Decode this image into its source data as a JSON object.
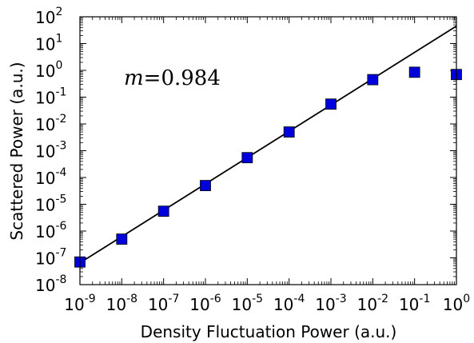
{
  "chart_data": {
    "type": "scatter",
    "title": "",
    "xlabel": "Density Fluctuation Power (a.u.)",
    "ylabel": "Scattered Power (a.u.)",
    "xscale": "log",
    "yscale": "log",
    "xlim": [
      1e-09,
      1
    ],
    "ylim": [
      1e-08,
      100
    ],
    "x_ticks": [
      {
        "base": "10",
        "exp": "-9"
      },
      {
        "base": "10",
        "exp": "-8"
      },
      {
        "base": "10",
        "exp": "-7"
      },
      {
        "base": "10",
        "exp": "-6"
      },
      {
        "base": "10",
        "exp": "-5"
      },
      {
        "base": "10",
        "exp": "-4"
      },
      {
        "base": "10",
        "exp": "-3"
      },
      {
        "base": "10",
        "exp": "-2"
      },
      {
        "base": "10",
        "exp": "-1"
      },
      {
        "base": "10",
        "exp": "0"
      }
    ],
    "y_ticks": [
      {
        "base": "10",
        "exp": "-8"
      },
      {
        "base": "10",
        "exp": "-7"
      },
      {
        "base": "10",
        "exp": "-6"
      },
      {
        "base": "10",
        "exp": "-5"
      },
      {
        "base": "10",
        "exp": "-4"
      },
      {
        "base": "10",
        "exp": "-3"
      },
      {
        "base": "10",
        "exp": "-2"
      },
      {
        "base": "10",
        "exp": "-1"
      },
      {
        "base": "10",
        "exp": "0"
      },
      {
        "base": "10",
        "exp": "1"
      },
      {
        "base": "10",
        "exp": "2"
      }
    ],
    "grid": false,
    "series": [
      {
        "type": "scatter",
        "marker": "square",
        "color": "#0000dd",
        "points": [
          {
            "x": 1e-09,
            "y": 7e-08
          },
          {
            "x": 1e-08,
            "y": 5e-07
          },
          {
            "x": 1e-07,
            "y": 5.5e-06
          },
          {
            "x": 1e-06,
            "y": 5e-05
          },
          {
            "x": 1e-05,
            "y": 0.00055
          },
          {
            "x": 0.0001,
            "y": 0.005
          },
          {
            "x": 0.001,
            "y": 0.055
          },
          {
            "x": 0.01,
            "y": 0.45
          },
          {
            "x": 0.1,
            "y": 0.85
          },
          {
            "x": 1,
            "y": 0.7
          }
        ]
      },
      {
        "type": "line",
        "color": "#000000",
        "points": [
          {
            "x": 1e-09,
            "y": 6.5e-08
          },
          {
            "x": 1,
            "y": 45
          }
        ]
      }
    ],
    "annotation": {
      "variable": "m",
      "operator": "=",
      "value": "0.984"
    }
  }
}
